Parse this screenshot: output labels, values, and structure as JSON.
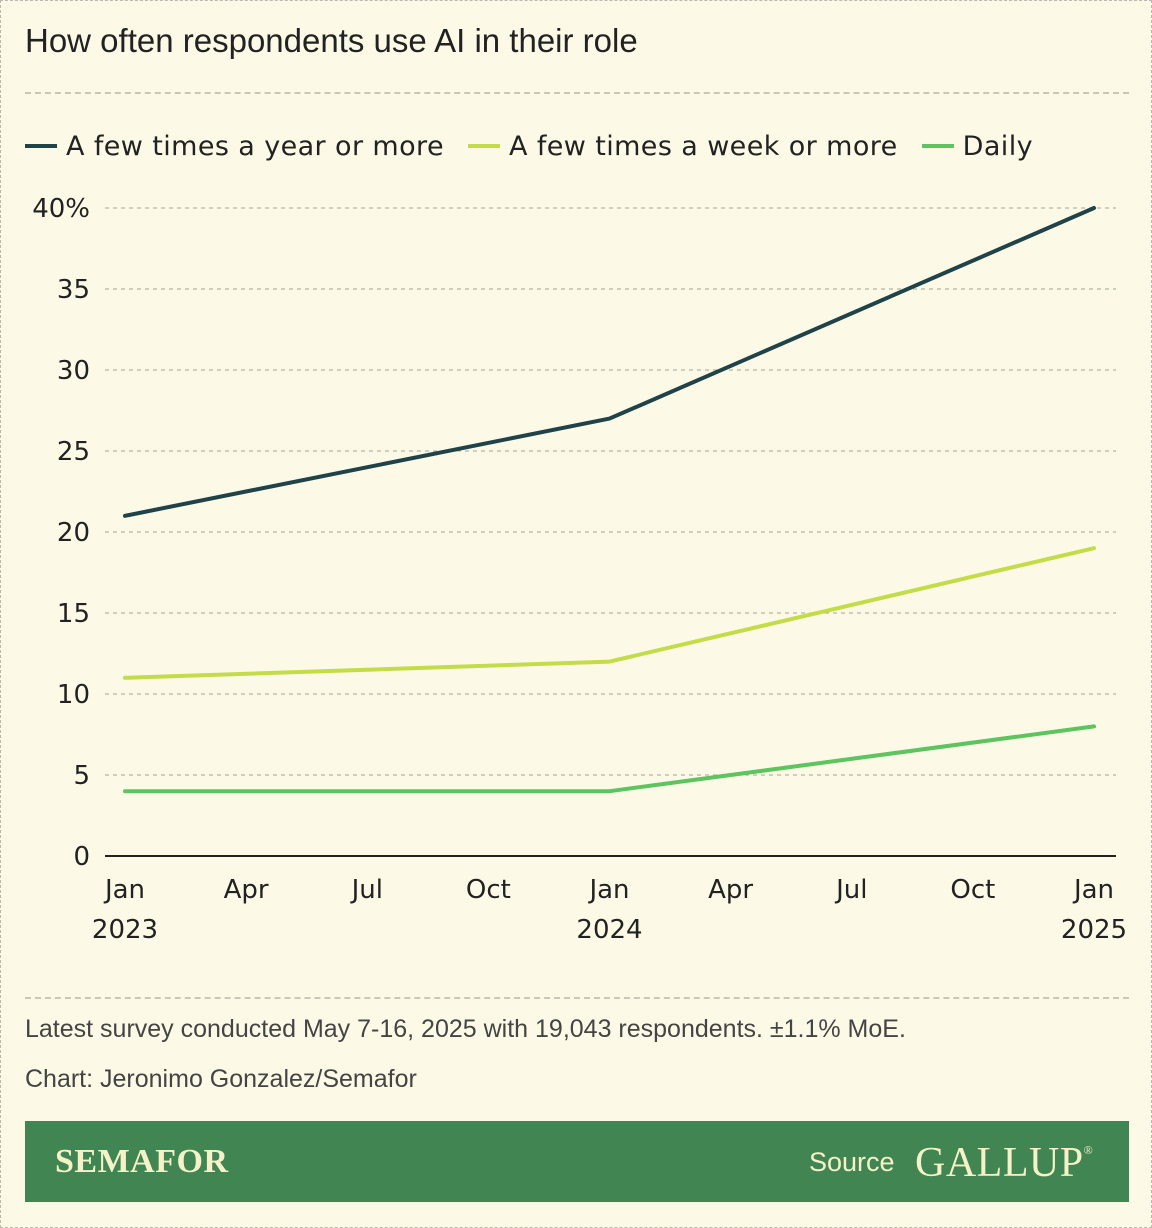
{
  "title": "How often respondents use AI in their role",
  "legend": [
    {
      "label": "A few times a year or more",
      "color": "#1f4348"
    },
    {
      "label": "A few times a week or more",
      "color": "#c4dc48"
    },
    {
      "label": "Daily",
      "color": "#5ec460"
    }
  ],
  "chart_data": {
    "type": "line",
    "title": "How often respondents use AI in their role",
    "xlabel": "",
    "ylabel": "",
    "x_ticks": [
      {
        "date": "2023-01",
        "label": "Jan",
        "sublabel": "2023"
      },
      {
        "date": "2023-04",
        "label": "Apr",
        "sublabel": ""
      },
      {
        "date": "2023-07",
        "label": "Jul",
        "sublabel": ""
      },
      {
        "date": "2023-10",
        "label": "Oct",
        "sublabel": ""
      },
      {
        "date": "2024-01",
        "label": "Jan",
        "sublabel": "2024"
      },
      {
        "date": "2024-04",
        "label": "Apr",
        "sublabel": ""
      },
      {
        "date": "2024-07",
        "label": "Jul",
        "sublabel": ""
      },
      {
        "date": "2024-10",
        "label": "Oct",
        "sublabel": ""
      },
      {
        "date": "2025-01",
        "label": "Jan",
        "sublabel": "2025"
      }
    ],
    "xlim": [
      "2023-01",
      "2025-01"
    ],
    "ylim": [
      0,
      40
    ],
    "y_ticks": [
      0,
      5,
      10,
      15,
      20,
      25,
      30,
      35,
      40
    ],
    "y_tick_labels": [
      "0",
      "5",
      "10",
      "15",
      "20",
      "25",
      "30",
      "35",
      "40%"
    ],
    "grid": true,
    "legend_position": "top-left",
    "series": [
      {
        "name": "A few times a year or more",
        "color": "#1f4348",
        "x": [
          "2023-01",
          "2024-01",
          "2025-01"
        ],
        "y": [
          21,
          27,
          40
        ]
      },
      {
        "name": "A few times a week or more",
        "color": "#c4dc48",
        "x": [
          "2023-01",
          "2024-01",
          "2025-01"
        ],
        "y": [
          11,
          12,
          19
        ]
      },
      {
        "name": "Daily",
        "color": "#5ec460",
        "x": [
          "2023-01",
          "2024-01",
          "2025-01"
        ],
        "y": [
          4,
          4,
          8
        ]
      }
    ]
  },
  "footnote": "Latest survey conducted May 7-16, 2025 with 19,043 respondents. ±1.1% MoE.",
  "credit": "Chart: Jeronimo Gonzalez/Semafor",
  "footer": {
    "brand": "SEMAFOR",
    "source_label": "Source",
    "source_name": "GALLUP",
    "source_mark": "®",
    "background": "#418553"
  }
}
